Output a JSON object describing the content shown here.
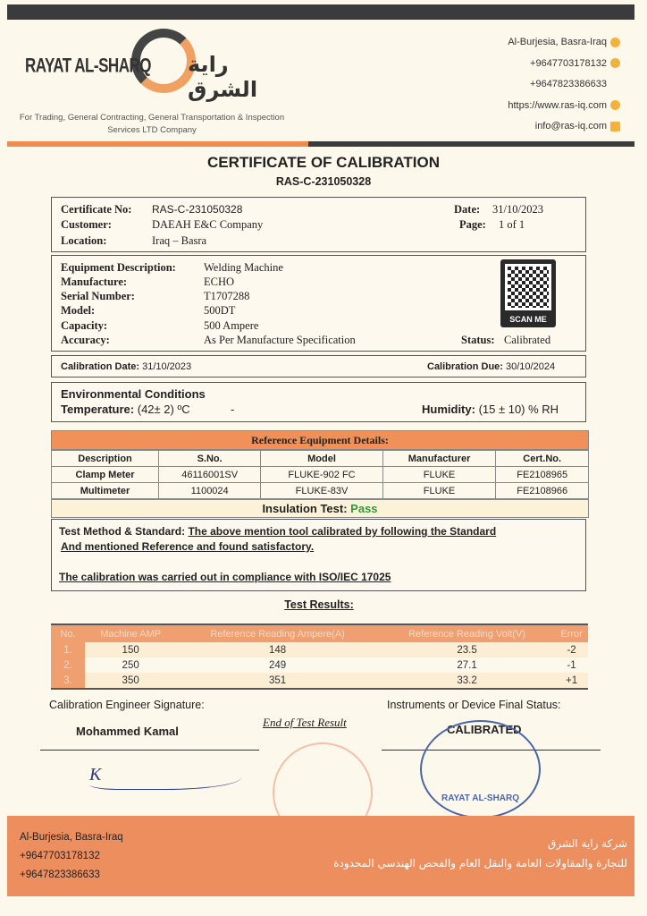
{
  "header": {
    "logo_en": "RAYAT AL-SHARQ",
    "logo_ar": "راية الشرق",
    "tagline": "For Trading, General Contracting, General Transportation & Inspection Services LTD Company",
    "contacts": [
      {
        "text": "Al-Burjesia, Basra-Iraq",
        "icon": "location-pin-icon"
      },
      {
        "text": "+9647703178132",
        "icon": "phone-icon"
      },
      {
        "text": "+9647823386633",
        "icon": ""
      },
      {
        "text": "https://www.ras-iq.com",
        "icon": "globe-icon"
      },
      {
        "text": "info@ras-iq.com",
        "icon": "mail-icon"
      }
    ]
  },
  "title": "CERTIFICATE OF CALIBRATION",
  "cert_ref": "RAS-C-231050328",
  "info": {
    "cert_no_label": "Certificate No:",
    "cert_no": "RAS-C-231050328",
    "customer_label": "Customer:",
    "customer": "DAEAH E&C Company",
    "location_label": "Location:",
    "location": "Iraq – Basra",
    "date_label": "Date:",
    "date": "31/10/2023",
    "page_label": "Page:",
    "page": "1 of 1"
  },
  "equipment": {
    "desc_label": "Equipment Description:",
    "desc": "Welding Machine",
    "manu_label": "Manufacture:",
    "manu": "ECHO",
    "serial_label": "Serial Number:",
    "serial": "T1707288",
    "model_label": "Model:",
    "model": "500DT",
    "capacity_label": "Capacity:",
    "capacity": "500 Ampere",
    "accuracy_label": "Accuracy:",
    "accuracy": "As Per Manufacture Specification",
    "status_label": "Status:",
    "status": "Calibrated",
    "qr_label": "SCAN ME"
  },
  "calibration": {
    "date_label": "Calibration Date:",
    "date": "31/10/2023",
    "due_label": "Calibration Due:",
    "due": "30/10/2024"
  },
  "environment": {
    "heading": "Environmental Conditions",
    "temp_label": "Temperature:",
    "temp": "(42± 2) ºC",
    "dash": "-",
    "hum_label": "Humidity:",
    "hum": "(15 ± 10) % RH"
  },
  "reference": {
    "heading": "Reference Equipment Details:",
    "columns": [
      "Description",
      "S.No.",
      "Model",
      "Manufacturer",
      "Cert.No."
    ],
    "rows": [
      [
        "Clamp Meter",
        "46116001SV",
        "FLUKE-902 FC",
        "FLUKE",
        "FE2108965"
      ],
      [
        "Multimeter",
        "1100024",
        "FLUKE-83V",
        "FLUKE",
        "FE2108966"
      ]
    ],
    "insulation_label": "Insulation Test:",
    "insulation_value": "Pass"
  },
  "method": {
    "label": "Test Method & Standard:",
    "line1": "The above mention tool calibrated by following the Standard",
    "line2": "And mentioned Reference and found satisfactory.",
    "compliance": "The calibration was carried out in compliance with ISO/IEC 17025"
  },
  "results": {
    "heading": "Test Results:",
    "columns": [
      "No.",
      "Machine AMP",
      "Reference Reading Ampere(A)",
      "Reference Reading Volt(V)",
      "Error"
    ],
    "rows": [
      [
        "1.",
        "150",
        "148",
        "23.5",
        "-2"
      ],
      [
        "2.",
        "250",
        "249",
        "27.1",
        "-1"
      ],
      [
        "3.",
        "350",
        "351",
        "33.2",
        "+1"
      ]
    ]
  },
  "signoff": {
    "engineer_label": "Calibration Engineer Signature:",
    "engineer": "Mohammed Kamal",
    "end": "End of Test Result",
    "final_label": "Instruments or Device Final Status:",
    "final": "CALIBRATED",
    "stamp_text": "RAYAT AL-SHARQ"
  },
  "footer": {
    "lines": [
      "Al-Burjesia, Basra-Iraq",
      "+9647703178132",
      "+9647823386633"
    ],
    "ar1": "شركة راية الشرق",
    "ar2": "للتجارة والمقاولات العامة والنقل العام والفحص الهندسي المحدودة"
  },
  "colors": {
    "orange": "#f08c50",
    "dark": "#3b3b3b",
    "green": "#2f9a3a"
  }
}
